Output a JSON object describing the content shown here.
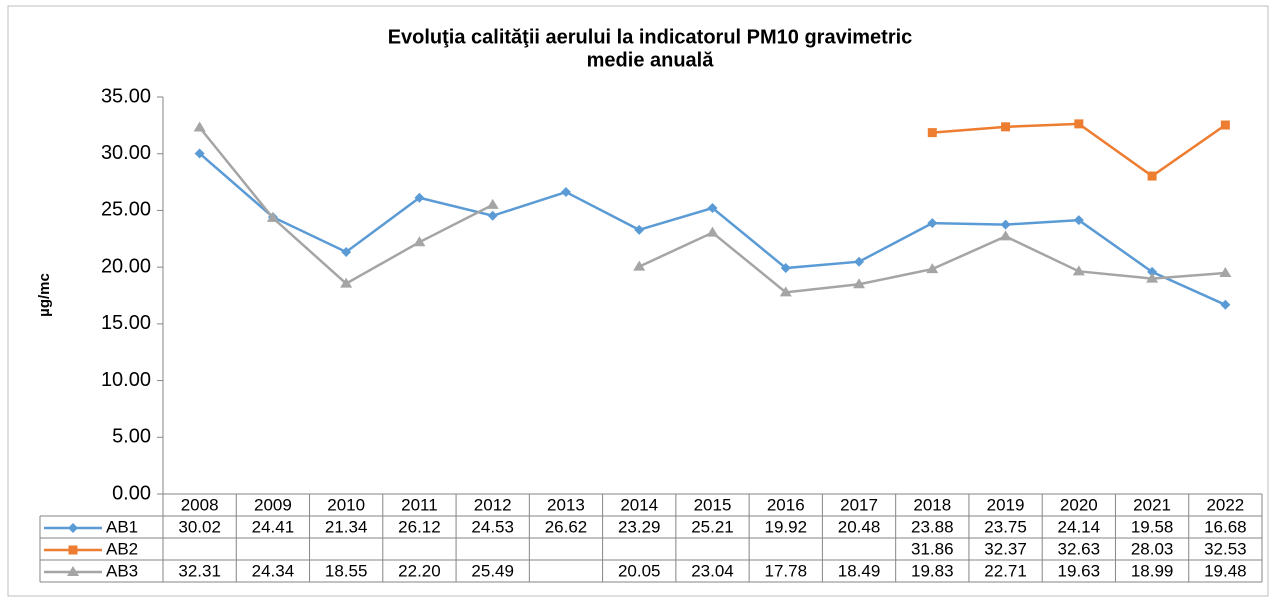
{
  "chart_data": {
    "type": "line",
    "title": [
      "Evoluţia calităţii aerului la indicatorul PM10 gravimetric",
      "medie anuală"
    ],
    "y_label": "µg/mc",
    "categories": [
      "2008",
      "2009",
      "2010",
      "2011",
      "2012",
      "2013",
      "2014",
      "2015",
      "2016",
      "2017",
      "2018",
      "2019",
      "2020",
      "2021",
      "2022"
    ],
    "series": [
      {
        "name": "AB1",
        "color": "#5b9bd5",
        "marker": "diamond",
        "values": [
          30.02,
          24.41,
          21.34,
          26.12,
          24.53,
          26.62,
          23.29,
          25.21,
          19.92,
          20.48,
          23.88,
          23.75,
          24.14,
          19.58,
          16.68
        ],
        "value_labels": [
          "30.02",
          "24.41",
          "21.34",
          "26.12",
          "24.53",
          "26.62",
          "23.29",
          "25.21",
          "19.92",
          "20.48",
          "23.88",
          "23.75",
          "24.14",
          "19.58",
          "16.68"
        ]
      },
      {
        "name": "AB2",
        "color": "#ed7d31",
        "marker": "square",
        "values": [
          null,
          null,
          null,
          null,
          null,
          null,
          null,
          null,
          null,
          null,
          31.86,
          32.37,
          32.63,
          28.03,
          32.53
        ],
        "value_labels": [
          null,
          null,
          null,
          null,
          null,
          null,
          null,
          null,
          null,
          null,
          "31.86",
          "32.37",
          "32.63",
          "28.03",
          "32.53"
        ]
      },
      {
        "name": "AB3",
        "color": "#a5a5a5",
        "marker": "triangle",
        "values": [
          32.31,
          24.34,
          18.55,
          22.2,
          25.49,
          null,
          20.05,
          23.04,
          17.78,
          18.49,
          19.83,
          22.71,
          19.63,
          18.99,
          19.48
        ],
        "value_labels": [
          "32.31",
          "24.34",
          "18.55",
          "22.20",
          "25.49",
          null,
          "20.05",
          "23.04",
          "17.78",
          "18.49",
          "19.83",
          "22.71",
          "19.63",
          "18.99",
          "19.48"
        ]
      }
    ],
    "ylim": [
      0,
      35
    ],
    "yticks": [
      {
        "value": 0,
        "label": "0.00"
      },
      {
        "value": 5,
        "label": "5.00"
      },
      {
        "value": 10,
        "label": "10.00"
      },
      {
        "value": 15,
        "label": "15.00"
      },
      {
        "value": 20,
        "label": "20.00"
      },
      {
        "value": 25,
        "label": "25.00"
      },
      {
        "value": 30,
        "label": "30.00"
      },
      {
        "value": 35,
        "label": "35.00"
      }
    ],
    "grid": false
  }
}
